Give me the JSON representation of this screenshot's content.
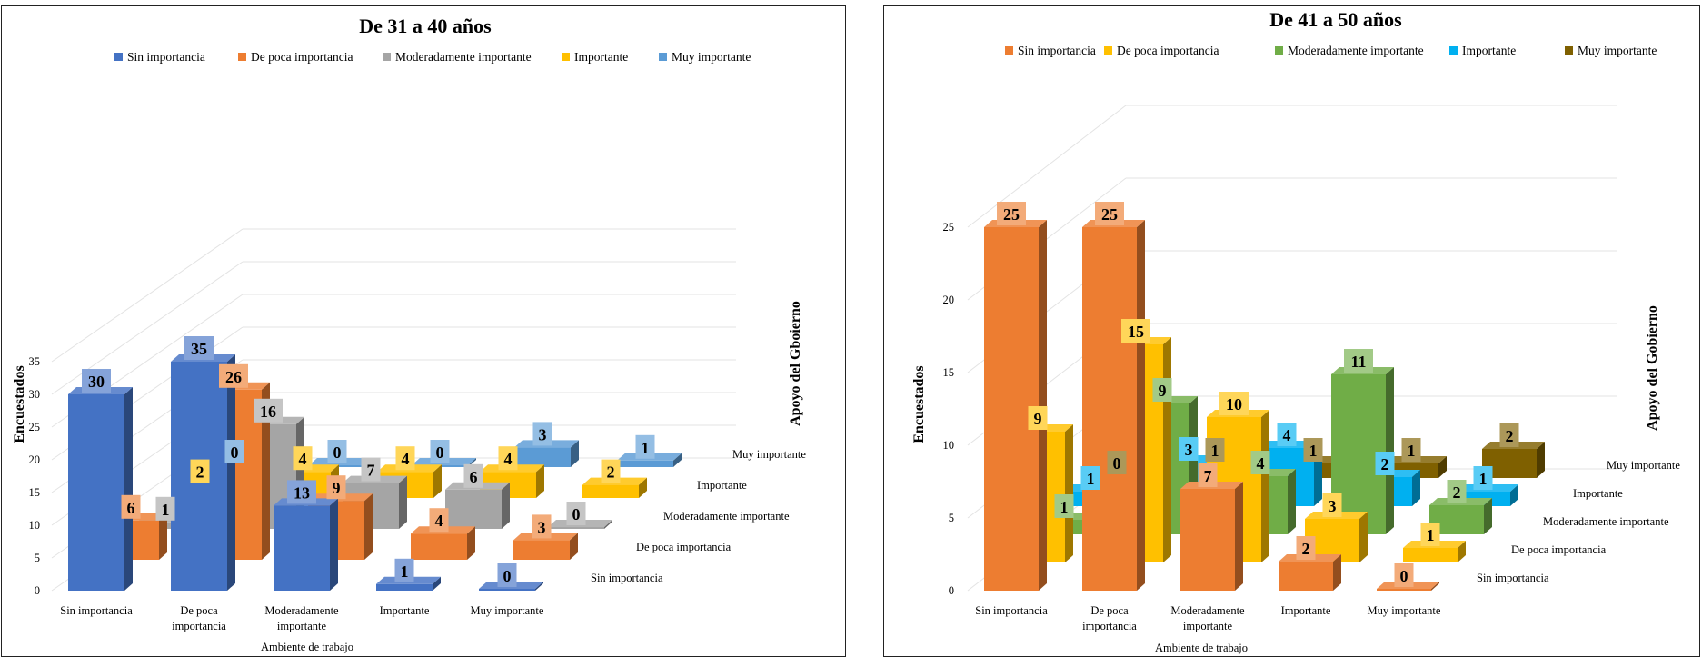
{
  "chart_data": [
    {
      "type": "bar",
      "subtype": "3d-bar",
      "title": "De 31 a 40 años",
      "xlabel": "Ambiente de trabajo",
      "ylabel": "Encuestados",
      "zlabel": "Apoyo del Gboierno",
      "ylim": [
        0,
        35
      ],
      "yticks": [
        0,
        5,
        10,
        15,
        20,
        25,
        30,
        35
      ],
      "categories": [
        "Sin importancia",
        "De poca importancia",
        "Moderadamente importante",
        "Importante",
        "Muy importante"
      ],
      "depth_categories": [
        "Sin importancia",
        "De poca importancia",
        "Moderadamente importante",
        "Importante",
        "Muy importante"
      ],
      "legend_position": "top",
      "series": [
        {
          "name": "Sin importancia",
          "color": "#4472C4",
          "values": [
            30,
            35,
            13,
            1,
            0
          ]
        },
        {
          "name": "De poca importancia",
          "color": "#ED7D31",
          "values": [
            6,
            26,
            9,
            4,
            3
          ]
        },
        {
          "name": "Moderadamente importante",
          "color": "#A5A5A5",
          "values": [
            1,
            16,
            7,
            6,
            0
          ]
        },
        {
          "name": "Importante",
          "color": "#FFC000",
          "values": [
            2,
            4,
            4,
            4,
            2
          ]
        },
        {
          "name": "Muy importante",
          "color": "#5B9BD5",
          "values": [
            0,
            0,
            0,
            3,
            1
          ]
        }
      ]
    },
    {
      "type": "bar",
      "subtype": "3d-bar",
      "title": "De 41 a 50 años",
      "xlabel": "Ambiente de trabajo",
      "ylabel": "Encuestados",
      "zlabel": "Apoyo del  Gobierno",
      "ylim": [
        0,
        25
      ],
      "yticks": [
        0,
        5,
        10,
        15,
        20,
        25
      ],
      "categories": [
        "Sin importancia",
        "De poca importancia",
        "Moderadamente importante",
        "Importante",
        "Muy importante"
      ],
      "depth_categories": [
        "Sin importancia",
        "De poca importancia",
        "Moderadamente importante",
        "Importante",
        "Muy importante"
      ],
      "legend_position": "top",
      "series": [
        {
          "name": "Sin importancia",
          "color": "#ED7D31",
          "values": [
            25,
            25,
            7,
            2,
            0
          ]
        },
        {
          "name": "De poca importancia",
          "color": "#FFC000",
          "values": [
            9,
            15,
            10,
            3,
            1
          ]
        },
        {
          "name": "Moderadamente importante",
          "color": "#70AD47",
          "values": [
            1,
            9,
            4,
            11,
            2
          ]
        },
        {
          "name": "Importante",
          "color": "#00B0F0",
          "values": [
            1,
            3,
            4,
            2,
            1
          ]
        },
        {
          "name": "Muy importante",
          "color": "#7F6000",
          "values": [
            0,
            1,
            1,
            1,
            2
          ]
        }
      ]
    }
  ]
}
